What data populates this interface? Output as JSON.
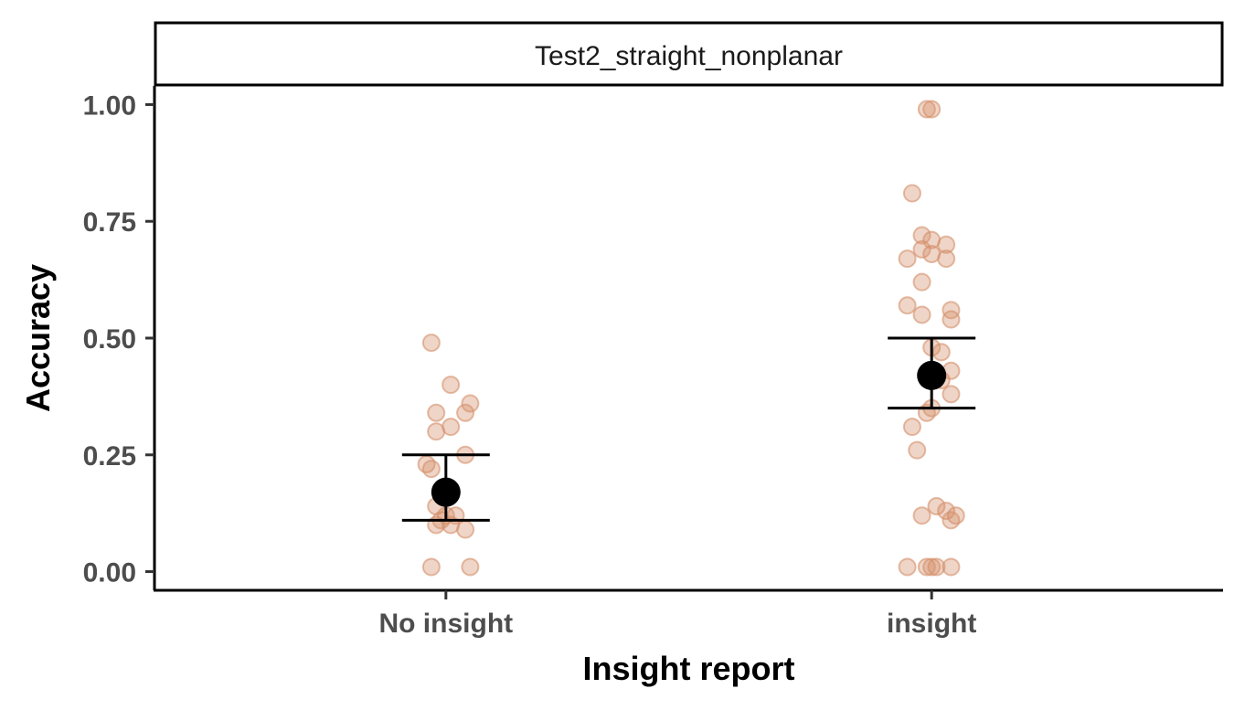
{
  "chart_data": {
    "type": "scatter",
    "facet_label": "Test2_straight_nonplanar",
    "xlabel": "Insight report",
    "ylabel": "Accuracy",
    "categories": [
      "No insight",
      "insight"
    ],
    "ylim": [
      -0.04,
      1.04
    ],
    "yticks": [
      0.0,
      0.25,
      0.5,
      0.75,
      1.0
    ],
    "ytick_labels": [
      "0.00",
      "0.25",
      "0.50",
      "0.75",
      "1.00"
    ],
    "grid": false,
    "point_color": "#d4906b",
    "summary_color": "#000000",
    "points": [
      {
        "category": "No insight",
        "points": [
          {
            "jitter": -0.03,
            "y": 0.49
          },
          {
            "jitter": 0.01,
            "y": 0.4
          },
          {
            "jitter": 0.05,
            "y": 0.36
          },
          {
            "jitter": -0.02,
            "y": 0.34
          },
          {
            "jitter": 0.04,
            "y": 0.34
          },
          {
            "jitter": 0.01,
            "y": 0.31
          },
          {
            "jitter": -0.02,
            "y": 0.3
          },
          {
            "jitter": 0.04,
            "y": 0.25
          },
          {
            "jitter": -0.04,
            "y": 0.23
          },
          {
            "jitter": -0.03,
            "y": 0.22
          },
          {
            "jitter": -0.02,
            "y": 0.14
          },
          {
            "jitter": 0.0,
            "y": 0.12
          },
          {
            "jitter": 0.02,
            "y": 0.12
          },
          {
            "jitter": -0.01,
            "y": 0.11
          },
          {
            "jitter": -0.02,
            "y": 0.1
          },
          {
            "jitter": 0.01,
            "y": 0.1
          },
          {
            "jitter": 0.04,
            "y": 0.09
          },
          {
            "jitter": -0.03,
            "y": 0.01
          },
          {
            "jitter": 0.05,
            "y": 0.01
          }
        ]
      },
      {
        "category": "insight",
        "points": [
          {
            "jitter": -0.01,
            "y": 0.99
          },
          {
            "jitter": 0.0,
            "y": 0.99
          },
          {
            "jitter": -0.04,
            "y": 0.81
          },
          {
            "jitter": -0.02,
            "y": 0.72
          },
          {
            "jitter": 0.0,
            "y": 0.71
          },
          {
            "jitter": 0.03,
            "y": 0.7
          },
          {
            "jitter": -0.02,
            "y": 0.69
          },
          {
            "jitter": 0.0,
            "y": 0.68
          },
          {
            "jitter": -0.05,
            "y": 0.67
          },
          {
            "jitter": 0.03,
            "y": 0.67
          },
          {
            "jitter": -0.02,
            "y": 0.62
          },
          {
            "jitter": -0.05,
            "y": 0.57
          },
          {
            "jitter": 0.04,
            "y": 0.56
          },
          {
            "jitter": -0.02,
            "y": 0.55
          },
          {
            "jitter": 0.04,
            "y": 0.54
          },
          {
            "jitter": 0.0,
            "y": 0.48
          },
          {
            "jitter": 0.02,
            "y": 0.47
          },
          {
            "jitter": 0.04,
            "y": 0.43
          },
          {
            "jitter": 0.02,
            "y": 0.41
          },
          {
            "jitter": 0.04,
            "y": 0.38
          },
          {
            "jitter": 0.0,
            "y": 0.35
          },
          {
            "jitter": -0.01,
            "y": 0.34
          },
          {
            "jitter": -0.04,
            "y": 0.31
          },
          {
            "jitter": -0.03,
            "y": 0.26
          },
          {
            "jitter": 0.01,
            "y": 0.14
          },
          {
            "jitter": 0.03,
            "y": 0.13
          },
          {
            "jitter": 0.05,
            "y": 0.12
          },
          {
            "jitter": -0.02,
            "y": 0.12
          },
          {
            "jitter": 0.04,
            "y": 0.11
          },
          {
            "jitter": -0.05,
            "y": 0.01
          },
          {
            "jitter": -0.01,
            "y": 0.01
          },
          {
            "jitter": 0.0,
            "y": 0.01
          },
          {
            "jitter": 0.01,
            "y": 0.01
          },
          {
            "jitter": 0.04,
            "y": 0.01
          }
        ]
      }
    ],
    "summary": [
      {
        "category": "No insight",
        "mean": 0.17,
        "lower": 0.11,
        "upper": 0.25
      },
      {
        "category": "insight",
        "mean": 0.42,
        "lower": 0.35,
        "upper": 0.5
      }
    ]
  }
}
